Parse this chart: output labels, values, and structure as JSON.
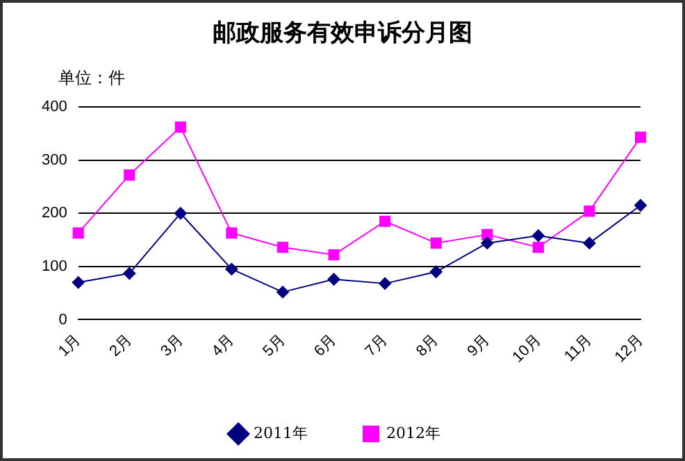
{
  "chart_data": {
    "type": "line",
    "title": "邮政服务有效申诉分月图",
    "annotations": [
      "单位：件"
    ],
    "categories": [
      "1月",
      "2月",
      "3月",
      "4月",
      "5月",
      "6月",
      "7月",
      "8月",
      "9月",
      "10月",
      "11月",
      "12月"
    ],
    "series": [
      {
        "name": "2011年",
        "color": "#000080",
        "marker": "diamond",
        "values": [
          70,
          87,
          200,
          95,
          52,
          76,
          68,
          90,
          144,
          158,
          144,
          215
        ]
      },
      {
        "name": "2012年",
        "color": "#ff00ff",
        "marker": "square",
        "values": [
          163,
          272,
          362,
          163,
          136,
          122,
          185,
          144,
          160,
          136,
          204,
          343
        ]
      }
    ],
    "ylim": [
      0,
      400
    ],
    "yticks": [
      0,
      100,
      200,
      300,
      400
    ],
    "grid": "y",
    "legend": "bottom"
  }
}
